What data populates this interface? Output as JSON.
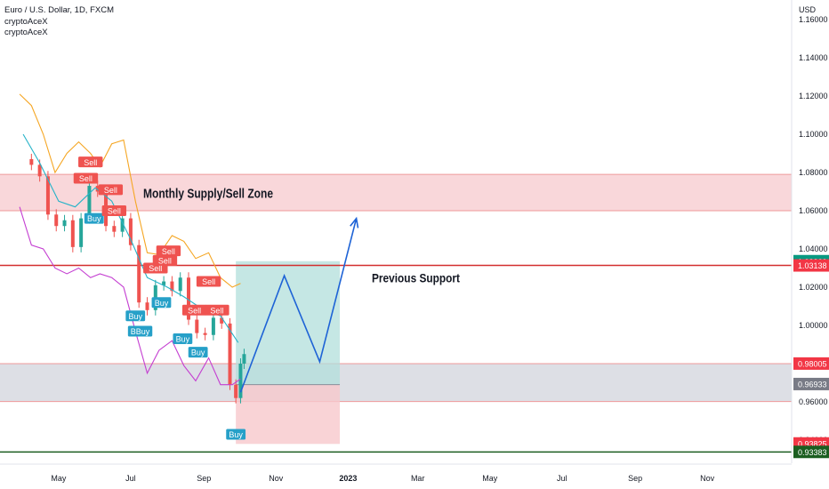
{
  "legend": {
    "symbol": "Euro / U.S. Dollar, 1D, FXCM",
    "indicators": [
      "cryptoAceX",
      "cryptoAceX"
    ]
  },
  "chart_data": {
    "type": "line",
    "currency": "USD",
    "ylim": [
      0.931,
      1.166
    ],
    "y_ticks": [
      {
        "value": 1.16,
        "label": "1.16000"
      },
      {
        "value": 1.14,
        "label": "1.14000"
      },
      {
        "value": 1.12,
        "label": "1.12000"
      },
      {
        "value": 1.1,
        "label": "1.10000"
      },
      {
        "value": 1.08,
        "label": "1.08000"
      },
      {
        "value": 1.06,
        "label": "1.06000"
      },
      {
        "value": 1.04,
        "label": "1.04000"
      },
      {
        "value": 1.02,
        "label": "1.02000"
      },
      {
        "value": 1.0,
        "label": "1.00000"
      },
      {
        "value": 0.98,
        "label": "0.98000"
      },
      {
        "value": 0.96,
        "label": "0.96000"
      },
      {
        "value": 0.94,
        "label": "0.94000"
      }
    ],
    "x_ticks": [
      {
        "date": "2022-05-01",
        "label": "May",
        "bold": false
      },
      {
        "date": "2022-07-01",
        "label": "Jul",
        "bold": false
      },
      {
        "date": "2022-09-01",
        "label": "Sep",
        "bold": false
      },
      {
        "date": "2022-11-01",
        "label": "Nov",
        "bold": false
      },
      {
        "date": "2023-01-01",
        "label": "2023",
        "bold": true
      },
      {
        "date": "2023-03-01",
        "label": "Mar",
        "bold": false
      },
      {
        "date": "2023-05-01",
        "label": "May",
        "bold": false
      },
      {
        "date": "2023-07-01",
        "label": "Jul",
        "bold": false
      },
      {
        "date": "2023-09-01",
        "label": "Sep",
        "bold": false
      },
      {
        "date": "2023-11-01",
        "label": "Nov",
        "bold": false
      }
    ],
    "price_labels": [
      {
        "value": 1.0336,
        "label": "1.03360",
        "color": "#089981"
      },
      {
        "value": 1.03138,
        "label": "1.03138",
        "color": "#f23645"
      },
      {
        "value": 0.98005,
        "label": "0.98005",
        "color": "#f23645"
      },
      {
        "value": 0.96933,
        "label": "0.96933",
        "color": "#787b86"
      },
      {
        "value": 0.93825,
        "label": "0.93825",
        "color": "#f23645"
      },
      {
        "value": 0.93383,
        "label": "0.93383",
        "color": "#1b5e20"
      }
    ],
    "zones": [
      {
        "label": "Monthly Supply/Sell Zone",
        "from": 1.06,
        "to": 1.079,
        "fill": "#f7c9cd",
        "stroke": "#ef9a9a"
      },
      {
        "label": "",
        "from": 0.9602,
        "to": 0.98,
        "fill": "#d1d4dc",
        "stroke": "#ef9a9a"
      }
    ],
    "levels": [
      {
        "label": "Previous Support",
        "value": 1.0314,
        "color": "#d32f2f"
      },
      {
        "label": "",
        "value": 0.9338,
        "color": "#1b5e20"
      }
    ],
    "position": {
      "start": "2022-09-28",
      "end": "2022-12-25",
      "entry": 0.969,
      "target": 1.0336,
      "stop": 0.938,
      "profit_color": "#b2dfdb",
      "loss_color": "#f8c8cc"
    },
    "projection": {
      "color": "#1e63d6",
      "points": [
        {
          "date": "2022-10-02",
          "price": 0.965
        },
        {
          "date": "2022-11-08",
          "price": 1.026
        },
        {
          "date": "2022-12-08",
          "price": 0.981
        },
        {
          "date": "2023-01-08",
          "price": 1.056
        }
      ]
    },
    "signals": [
      {
        "date": "2022-05-24",
        "price": 1.077,
        "label": "Sell",
        "side": "sell"
      },
      {
        "date": "2022-05-28",
        "price": 1.0855,
        "label": "Sell",
        "side": "sell"
      },
      {
        "date": "2022-05-31",
        "price": 1.056,
        "label": "Buy",
        "side": "buy"
      },
      {
        "date": "2022-06-14",
        "price": 1.071,
        "label": "Sell",
        "side": "sell"
      },
      {
        "date": "2022-06-17",
        "price": 1.06,
        "label": "Sell",
        "side": "sell"
      },
      {
        "date": "2022-07-05",
        "price": 1.005,
        "label": "Buy",
        "side": "buy"
      },
      {
        "date": "2022-07-09",
        "price": 0.997,
        "label": "BBuy",
        "side": "buy"
      },
      {
        "date": "2022-07-22",
        "price": 1.03,
        "label": "Sell",
        "side": "sell"
      },
      {
        "date": "2022-07-27",
        "price": 1.012,
        "label": "Buy",
        "side": "buy"
      },
      {
        "date": "2022-07-30",
        "price": 1.034,
        "label": "Sell",
        "side": "sell"
      },
      {
        "date": "2022-08-02",
        "price": 1.039,
        "label": "Sell",
        "side": "sell"
      },
      {
        "date": "2022-08-14",
        "price": 0.993,
        "label": "Buy",
        "side": "buy"
      },
      {
        "date": "2022-08-24",
        "price": 1.008,
        "label": "Sell",
        "side": "sell"
      },
      {
        "date": "2022-08-27",
        "price": 0.986,
        "label": "Buy",
        "side": "buy"
      },
      {
        "date": "2022-09-05",
        "price": 1.023,
        "label": "Sell",
        "side": "sell"
      },
      {
        "date": "2022-09-12",
        "price": 1.008,
        "label": "Sell",
        "side": "sell"
      },
      {
        "date": "2022-09-28",
        "price": 0.943,
        "label": "Buy",
        "side": "buy"
      }
    ],
    "series": [
      {
        "name": "EURUSD close",
        "role": "price",
        "color": "#26a69a",
        "x": [
          "2022-04-01",
          "2022-04-08",
          "2022-04-15",
          "2022-04-22",
          "2022-04-29",
          "2022-05-06",
          "2022-05-13",
          "2022-05-20",
          "2022-05-27",
          "2022-06-03",
          "2022-06-10",
          "2022-06-17",
          "2022-06-24",
          "2022-07-01",
          "2022-07-08",
          "2022-07-15",
          "2022-07-22",
          "2022-07-29",
          "2022-08-05",
          "2022-08-12",
          "2022-08-19",
          "2022-08-26",
          "2022-09-02",
          "2022-09-09",
          "2022-09-16",
          "2022-09-23",
          "2022-09-28",
          "2022-10-02",
          "2022-10-05"
        ],
        "values": [
          1.087,
          1.084,
          1.078,
          1.058,
          1.052,
          1.055,
          1.041,
          1.056,
          1.073,
          1.07,
          1.052,
          1.049,
          1.056,
          1.042,
          1.012,
          1.008,
          1.021,
          1.023,
          1.018,
          1.025,
          1.003,
          0.996,
          0.995,
          1.004,
          1.001,
          0.969,
          0.962,
          0.98,
          0.985
        ]
      },
      {
        "name": "cryptoAceX basis",
        "role": "indicator",
        "color": "#26b3c8",
        "x": [
          "2022-04-01",
          "2022-04-15",
          "2022-05-01",
          "2022-05-15",
          "2022-06-01",
          "2022-06-15",
          "2022-07-01",
          "2022-07-15",
          "2022-08-01",
          "2022-08-15",
          "2022-09-01",
          "2022-09-15",
          "2022-09-30"
        ],
        "values": [
          1.1,
          1.085,
          1.065,
          1.062,
          1.072,
          1.065,
          1.045,
          1.025,
          1.02,
          1.015,
          1.008,
          1.005,
          0.991
        ]
      },
      {
        "name": "cryptoAceX upper",
        "role": "indicator",
        "color": "#f5a623",
        "x": [
          "2022-03-29",
          "2022-04-08",
          "2022-04-18",
          "2022-04-28",
          "2022-05-08",
          "2022-05-18",
          "2022-05-28",
          "2022-06-05",
          "2022-06-15",
          "2022-06-25",
          "2022-07-05",
          "2022-07-15",
          "2022-07-25",
          "2022-08-05",
          "2022-08-15",
          "2022-08-25",
          "2022-09-05",
          "2022-09-15",
          "2022-09-25",
          "2022-10-02"
        ],
        "values": [
          1.121,
          1.115,
          1.1,
          1.08,
          1.09,
          1.096,
          1.09,
          1.083,
          1.095,
          1.097,
          1.065,
          1.038,
          1.037,
          1.047,
          1.044,
          1.035,
          1.038,
          1.025,
          1.02,
          1.022
        ]
      },
      {
        "name": "cryptoAceX lower",
        "role": "indicator",
        "color": "#c43ed1",
        "x": [
          "2022-03-29",
          "2022-04-08",
          "2022-04-18",
          "2022-04-28",
          "2022-05-08",
          "2022-05-18",
          "2022-05-28",
          "2022-06-05",
          "2022-06-15",
          "2022-06-25",
          "2022-07-05",
          "2022-07-15",
          "2022-07-25",
          "2022-08-05",
          "2022-08-15",
          "2022-08-25",
          "2022-09-05",
          "2022-09-15",
          "2022-09-25",
          "2022-10-02"
        ],
        "values": [
          1.062,
          1.042,
          1.04,
          1.03,
          1.027,
          1.03,
          1.025,
          1.027,
          1.025,
          1.02,
          0.997,
          0.975,
          0.987,
          0.992,
          0.979,
          0.971,
          0.983,
          0.969,
          0.969,
          0.972
        ]
      }
    ]
  }
}
